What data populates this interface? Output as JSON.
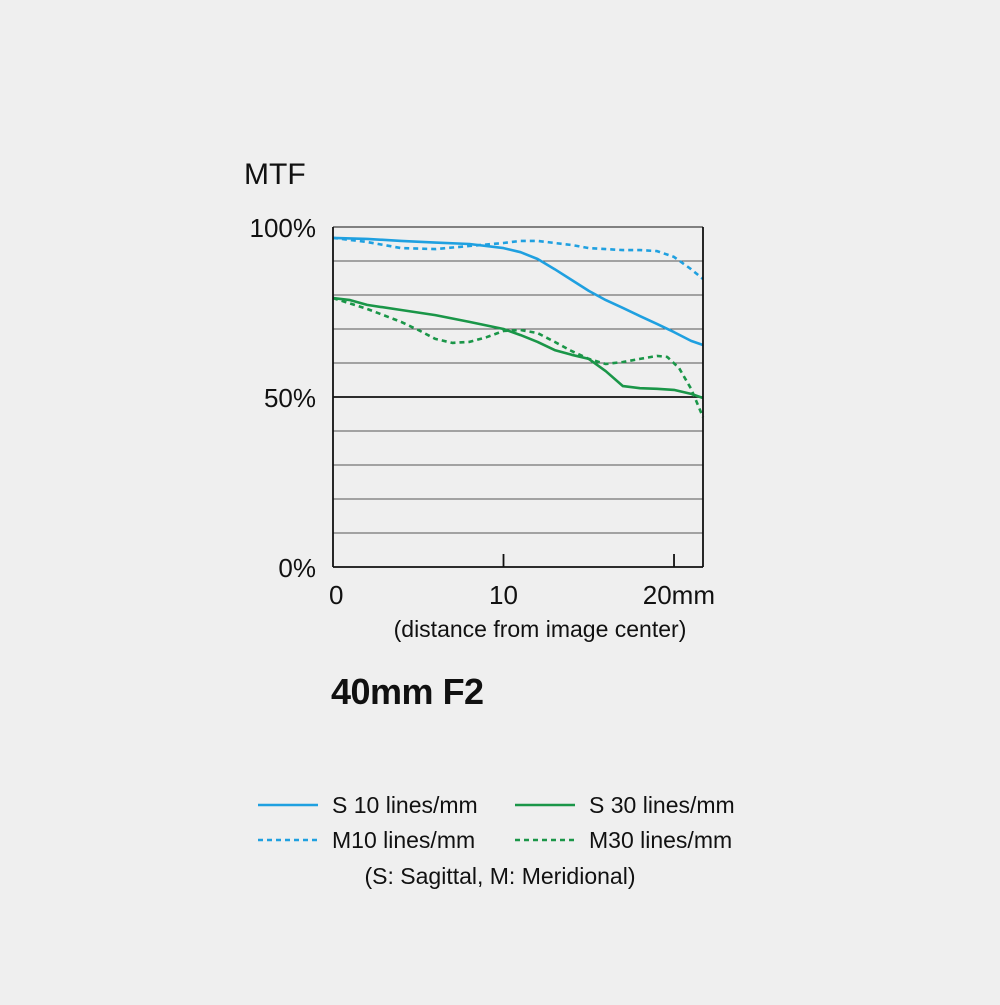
{
  "chart_data": {
    "type": "line",
    "title": "40mm F2",
    "ylabel": "MTF",
    "xlabel": "(distance from image center)",
    "xlim": [
      0,
      21.7
    ],
    "ylim": [
      0,
      100
    ],
    "x_ticks": [
      {
        "value": 0,
        "label": "0"
      },
      {
        "value": 10,
        "label": "10"
      },
      {
        "value": 20,
        "label": "20mm"
      }
    ],
    "y_ticks": [
      {
        "value": 100,
        "label": "100%"
      },
      {
        "value": 50,
        "label": "50%"
      },
      {
        "value": 0,
        "label": "0%"
      }
    ],
    "gridlines_y": [
      10,
      20,
      30,
      40,
      50,
      60,
      70,
      80,
      90,
      100
    ],
    "grid": true,
    "series": [
      {
        "name": "S 10 lines/mm",
        "color": "#1fa0e0",
        "dash": "solid",
        "points": [
          [
            0,
            96.8
          ],
          [
            2,
            96.5
          ],
          [
            4,
            95.9
          ],
          [
            6,
            95.4
          ],
          [
            8,
            95.0
          ],
          [
            10,
            93.8
          ],
          [
            11,
            92.6
          ],
          [
            12,
            90.6
          ],
          [
            13,
            87.6
          ],
          [
            14,
            84.4
          ],
          [
            15,
            81.2
          ],
          [
            16,
            78.5
          ],
          [
            17,
            76.2
          ],
          [
            18,
            73.8
          ],
          [
            19,
            71.5
          ],
          [
            20,
            69.1
          ],
          [
            21,
            66.5
          ],
          [
            21.7,
            65.3
          ]
        ]
      },
      {
        "name": "M10 lines/mm",
        "color": "#1fa0e0",
        "dash": "dashed",
        "points": [
          [
            0,
            96.8
          ],
          [
            2,
            95.6
          ],
          [
            4,
            93.8
          ],
          [
            6,
            93.5
          ],
          [
            8,
            94.4
          ],
          [
            10,
            95.3
          ],
          [
            11,
            95.9
          ],
          [
            12,
            95.9
          ],
          [
            13,
            95.3
          ],
          [
            14,
            94.7
          ],
          [
            15,
            93.8
          ],
          [
            16,
            93.5
          ],
          [
            17,
            93.2
          ],
          [
            18,
            93.2
          ],
          [
            19,
            92.9
          ],
          [
            20,
            91.2
          ],
          [
            21,
            87.6
          ],
          [
            21.7,
            84.7
          ]
        ]
      },
      {
        "name": "S 30 lines/mm",
        "color": "#1a9648",
        "dash": "solid",
        "points": [
          [
            0,
            79.1
          ],
          [
            1,
            78.5
          ],
          [
            2,
            77.1
          ],
          [
            4,
            75.6
          ],
          [
            6,
            74.1
          ],
          [
            8,
            72.1
          ],
          [
            10,
            70.0
          ],
          [
            11,
            68.2
          ],
          [
            12,
            66.2
          ],
          [
            13,
            63.8
          ],
          [
            14,
            62.4
          ],
          [
            15,
            61.2
          ],
          [
            16,
            57.6
          ],
          [
            17,
            53.2
          ],
          [
            18,
            52.6
          ],
          [
            19,
            52.4
          ],
          [
            20,
            52.1
          ],
          [
            21,
            50.9
          ],
          [
            21.7,
            49.7
          ]
        ]
      },
      {
        "name": "M30 lines/mm",
        "color": "#1a9648",
        "dash": "dashed",
        "points": [
          [
            0,
            79.1
          ],
          [
            2,
            75.9
          ],
          [
            4,
            72.1
          ],
          [
            5,
            69.7
          ],
          [
            6,
            67.1
          ],
          [
            7,
            65.9
          ],
          [
            8,
            66.2
          ],
          [
            9,
            67.6
          ],
          [
            10,
            69.4
          ],
          [
            11,
            69.7
          ],
          [
            12,
            68.8
          ],
          [
            13,
            66.2
          ],
          [
            14,
            63.5
          ],
          [
            15,
            61.2
          ],
          [
            16,
            59.7
          ],
          [
            17,
            60.3
          ],
          [
            18,
            61.2
          ],
          [
            19,
            62.1
          ],
          [
            19.6,
            61.8
          ],
          [
            20.3,
            58.5
          ],
          [
            21,
            52.4
          ],
          [
            21.7,
            44.1
          ]
        ]
      }
    ],
    "legend": {
      "placement": "bottom",
      "note": "(S: Sagittal, M: Meridional)"
    }
  }
}
